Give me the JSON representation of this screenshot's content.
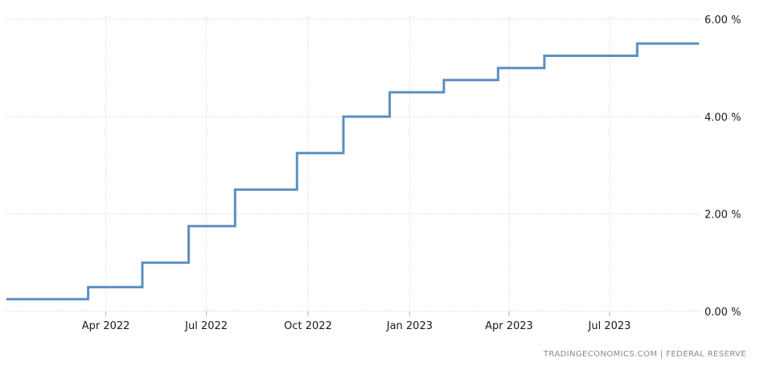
{
  "chart_data": {
    "type": "line",
    "step": true,
    "title": "",
    "xlabel": "",
    "ylabel": "",
    "x_range": [
      "2022-01-01",
      "2023-09-22"
    ],
    "ylim": [
      0,
      6
    ],
    "y_ticks": [
      0,
      2,
      4,
      6
    ],
    "y_tick_labels": [
      "0.00 %",
      "2.00 %",
      "4.00 %",
      "6.00 %"
    ],
    "x_ticks": [
      "2022-04-01",
      "2022-07-01",
      "2022-10-01",
      "2023-01-01",
      "2023-04-01",
      "2023-07-01"
    ],
    "x_tick_labels": [
      "Apr 2022",
      "Jul 2022",
      "Oct 2022",
      "Jan 2023",
      "Apr 2023",
      "Jul 2023"
    ],
    "grid": true,
    "y_axis_side": "right",
    "series_color": "#5b8fc2",
    "series": [
      {
        "name": "",
        "points": [
          {
            "x": "2022-01-01",
            "y": 0.25
          },
          {
            "x": "2022-03-16",
            "y": 0.5
          },
          {
            "x": "2022-05-04",
            "y": 1.0
          },
          {
            "x": "2022-06-15",
            "y": 1.75
          },
          {
            "x": "2022-07-27",
            "y": 2.5
          },
          {
            "x": "2022-09-21",
            "y": 3.25
          },
          {
            "x": "2022-11-02",
            "y": 4.0
          },
          {
            "x": "2022-12-14",
            "y": 4.5
          },
          {
            "x": "2023-02-01",
            "y": 4.75
          },
          {
            "x": "2023-03-22",
            "y": 5.0
          },
          {
            "x": "2023-05-03",
            "y": 5.25
          },
          {
            "x": "2023-07-26",
            "y": 5.5
          },
          {
            "x": "2023-09-20",
            "y": 5.5
          }
        ]
      }
    ]
  },
  "source_text": "TRADINGECONOMICS.COM  |  FEDERAL RESERVE"
}
